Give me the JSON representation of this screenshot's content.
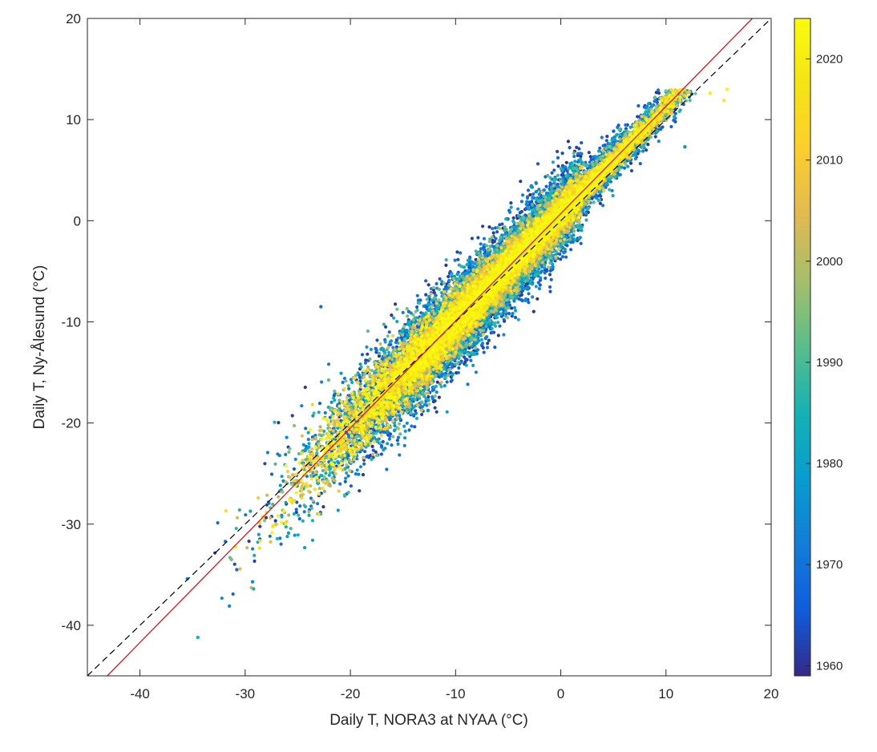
{
  "chart_data": {
    "type": "scatter",
    "title": "",
    "xlabel": "Daily T, NORA3 at NYAA (°C)",
    "ylabel": "Daily T, Ny-Ålesund (°C)",
    "xlim": [
      -45,
      20
    ],
    "ylim": [
      -45,
      20
    ],
    "x_ticks": [
      -40,
      -30,
      -20,
      -10,
      0,
      10,
      20
    ],
    "y_ticks": [
      -40,
      -30,
      -20,
      -10,
      0,
      10,
      20
    ],
    "grid": false,
    "colorbar": {
      "label": "",
      "range": [
        1959,
        2024
      ],
      "ticks": [
        1960,
        1970,
        1980,
        1990,
        2000,
        2010,
        2020
      ],
      "colormap": "parula"
    },
    "reference_lines": [
      {
        "name": "1:1 line",
        "style": "dashed",
        "color": "#000000",
        "slope": 1,
        "intercept": 0
      },
      {
        "name": "fit line",
        "style": "solid",
        "color": "#e8000b",
        "slope": 1.06,
        "intercept": 0.7
      }
    ],
    "point_density": {
      "description": "Dense cloud of daily points along the diagonal; recent years (yellow) concentrated near the center of the cloud, earlier years (blue) scattered at the edges",
      "approx_count": 23000
    },
    "outliers": [
      {
        "x": -34.5,
        "y": -41.2,
        "year": 1985
      },
      {
        "x": -31.5,
        "y": -38.1,
        "year": 1975
      },
      {
        "x": -29.2,
        "y": -36.4,
        "year": 1985
      },
      {
        "x": -29.3,
        "y": -35.7,
        "year": 1975
      },
      {
        "x": -35.5,
        "y": -35.4,
        "year": 1975
      },
      {
        "x": -31.3,
        "y": -33.5,
        "year": 1995
      },
      {
        "x": -30.8,
        "y": -34.5,
        "year": 1970
      },
      {
        "x": -22.8,
        "y": -8.5,
        "year": 1970
      },
      {
        "x": 11.8,
        "y": 7.3,
        "year": 1975
      },
      {
        "x": 15.8,
        "y": 13.0,
        "year": 2022
      },
      {
        "x": 15.5,
        "y": 11.9,
        "year": 2020
      },
      {
        "x": 14.2,
        "y": 12.6,
        "year": 2021
      }
    ]
  },
  "colors": {
    "fit_line": "#e8000b",
    "identity_line": "#000000",
    "axes": "#262626"
  }
}
